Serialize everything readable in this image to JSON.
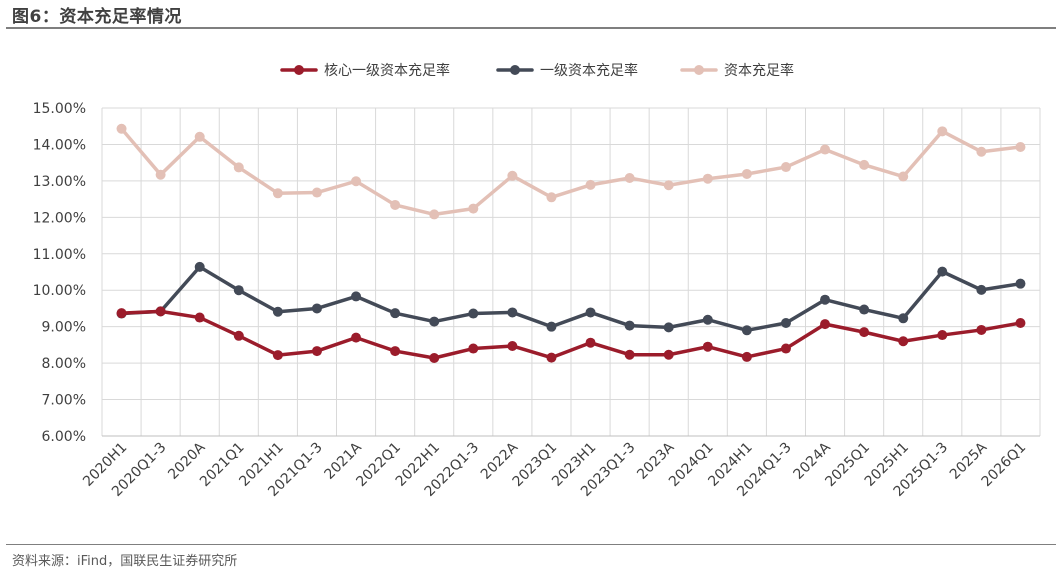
{
  "title": "图6：资本充足率情况",
  "source": "资料来源：iFind，国联民生证券研究所",
  "chart_data": {
    "type": "line",
    "categories": [
      "2020H1",
      "2020Q1-3",
      "2020A",
      "2021Q1",
      "2021H1",
      "2021Q1-3",
      "2021A",
      "2022Q1",
      "2022H1",
      "2022Q1-3",
      "2022A",
      "2023Q1",
      "2023H1",
      "2023Q1-3",
      "2023A",
      "2024Q1",
      "2024H1",
      "2024Q1-3",
      "2024A",
      "2025Q1",
      "2025H1",
      "2025Q1-3",
      "2025A",
      "2026Q1"
    ],
    "ylim": [
      6,
      15
    ],
    "yticks": [
      6,
      7,
      8,
      9,
      10,
      11,
      12,
      13,
      14,
      15
    ],
    "ytick_labels": [
      "6.00%",
      "7.00%",
      "8.00%",
      "9.00%",
      "10.00%",
      "11.00%",
      "12.00%",
      "13.00%",
      "14.00%",
      "15.00%"
    ],
    "grid": true,
    "legend_position": "top-center",
    "series": [
      {
        "name": "核心一级资本充足率",
        "color": "#9b1c2b",
        "values": [
          9.37,
          9.42,
          9.25,
          8.75,
          8.22,
          8.33,
          8.7,
          8.33,
          8.14,
          8.4,
          8.47,
          8.15,
          8.56,
          8.23,
          8.23,
          8.45,
          8.17,
          8.4,
          9.07,
          8.85,
          8.6,
          8.77,
          8.91,
          9.1
        ]
      },
      {
        "name": "一级资本充足率",
        "color": "#434a57",
        "values": [
          9.36,
          9.42,
          10.64,
          10.0,
          9.41,
          9.5,
          9.83,
          9.37,
          9.14,
          9.36,
          9.39,
          9.0,
          9.39,
          9.03,
          8.98,
          9.19,
          8.9,
          9.1,
          9.74,
          9.47,
          9.23,
          10.51,
          10.01,
          10.18
        ]
      },
      {
        "name": "资本充足率",
        "color": "#e3c0b6",
        "values": [
          14.43,
          13.17,
          14.21,
          13.37,
          12.66,
          12.68,
          12.99,
          12.34,
          12.08,
          12.24,
          13.14,
          12.55,
          12.89,
          13.08,
          12.88,
          13.06,
          13.19,
          13.38,
          13.86,
          13.44,
          13.12,
          14.36,
          13.8,
          13.93
        ]
      }
    ]
  }
}
